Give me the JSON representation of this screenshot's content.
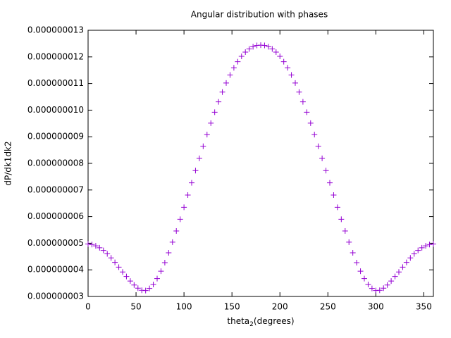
{
  "chart_data": {
    "type": "scatter",
    "title": "Angular distribution with phases",
    "xlabel": [
      "theta",
      "2",
      "(degrees)"
    ],
    "ylabel": "dP/dk1dk2",
    "marker": "+",
    "color": "#9400d3",
    "xlim": [
      0,
      360
    ],
    "xticks": [
      0,
      50,
      100,
      150,
      200,
      250,
      300,
      350
    ],
    "ylim": [
      3e-09,
      1.3e-08
    ],
    "yticks": [
      {
        "value": 3e-09,
        "label": "0.000000003"
      },
      {
        "value": 4e-09,
        "label": "0.000000004"
      },
      {
        "value": 5e-09,
        "label": "0.000000005"
      },
      {
        "value": 6e-09,
        "label": "0.000000006"
      },
      {
        "value": 7e-09,
        "label": "0.000000007"
      },
      {
        "value": 8e-09,
        "label": "0.000000008"
      },
      {
        "value": 9e-09,
        "label": "0.000000009"
      },
      {
        "value": 1e-08,
        "label": "0.000000010"
      },
      {
        "value": 1.1e-08,
        "label": "0.000000011"
      },
      {
        "value": 1.2e-08,
        "label": "0.000000012"
      },
      {
        "value": 1.3e-08,
        "label": "0.000000013"
      }
    ],
    "x": [
      0,
      4,
      8,
      12,
      16,
      20,
      24,
      28,
      32,
      36,
      40,
      44,
      48,
      52,
      56,
      60,
      64,
      68,
      72,
      76,
      80,
      84,
      88,
      92,
      96,
      100,
      104,
      108,
      112,
      116,
      120,
      124,
      128,
      132,
      136,
      140,
      144,
      148,
      152,
      156,
      160,
      164,
      168,
      172,
      176,
      180,
      184,
      188,
      192,
      196,
      200,
      204,
      208,
      212,
      216,
      220,
      224,
      228,
      232,
      236,
      240,
      244,
      248,
      252,
      256,
      260,
      264,
      268,
      272,
      276,
      280,
      284,
      288,
      292,
      296,
      300,
      304,
      308,
      312,
      316,
      320,
      324,
      328,
      332,
      336,
      340,
      344,
      348,
      352,
      356,
      360
    ],
    "values": [
      4.97e-09,
      4.95e-09,
      4.9e-09,
      4.83e-09,
      4.73e-09,
      4.6e-09,
      4.45e-09,
      4.28e-09,
      4.1e-09,
      3.92e-09,
      3.75e-09,
      3.58e-09,
      3.43e-09,
      3.31e-09,
      3.23e-09,
      3.22e-09,
      3.3e-09,
      3.45e-09,
      3.67e-09,
      3.95e-09,
      4.27e-09,
      4.64e-09,
      5.04e-09,
      5.46e-09,
      5.9e-09,
      6.35e-09,
      6.81e-09,
      7.27e-09,
      7.73e-09,
      8.19e-09,
      8.64e-09,
      9.08e-09,
      9.51e-09,
      9.92e-09,
      1.031e-08,
      1.068e-08,
      1.102e-08,
      1.132e-08,
      1.159e-08,
      1.182e-08,
      1.202e-08,
      1.218e-08,
      1.23e-08,
      1.238e-08,
      1.243e-08,
      1.244e-08,
      1.243e-08,
      1.238e-08,
      1.23e-08,
      1.218e-08,
      1.202e-08,
      1.182e-08,
      1.159e-08,
      1.132e-08,
      1.102e-08,
      1.068e-08,
      1.031e-08,
      9.92e-09,
      9.51e-09,
      9.08e-09,
      8.64e-09,
      8.19e-09,
      7.73e-09,
      7.27e-09,
      6.81e-09,
      6.35e-09,
      5.9e-09,
      5.46e-09,
      5.04e-09,
      4.64e-09,
      4.27e-09,
      3.95e-09,
      3.67e-09,
      3.45e-09,
      3.3e-09,
      3.22e-09,
      3.23e-09,
      3.31e-09,
      3.43e-09,
      3.58e-09,
      3.75e-09,
      3.92e-09,
      4.1e-09,
      4.28e-09,
      4.45e-09,
      4.6e-09,
      4.73e-09,
      4.83e-09,
      4.9e-09,
      4.95e-09,
      4.97e-09
    ]
  }
}
